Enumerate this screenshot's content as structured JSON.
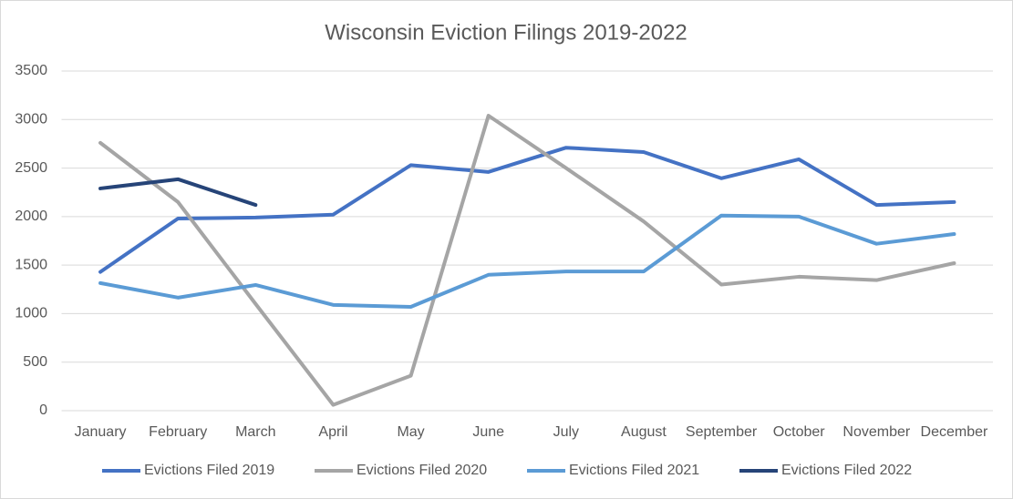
{
  "chart_data": {
    "type": "line",
    "title": "Wisconsin Eviction Filings 2019-2022",
    "categories": [
      "January",
      "February",
      "March",
      "April",
      "May",
      "June",
      "July",
      "August",
      "September",
      "October",
      "November",
      "December"
    ],
    "series": [
      {
        "name": "Evictions Filed 2019",
        "color": "#4472c4",
        "values": [
          1430,
          1980,
          1990,
          2020,
          2530,
          2460,
          2710,
          2665,
          2395,
          2590,
          2120,
          2150
        ]
      },
      {
        "name": "Evictions Filed 2020",
        "color": "#a5a5a5",
        "values": [
          2760,
          2150,
          1100,
          60,
          360,
          3040,
          2500,
          1950,
          1300,
          1380,
          1345,
          1520
        ]
      },
      {
        "name": "Evictions Filed 2021",
        "color": "#5b9bd5",
        "values": [
          1315,
          1165,
          1295,
          1090,
          1070,
          1400,
          1435,
          1435,
          2010,
          2000,
          1720,
          1820
        ]
      },
      {
        "name": "Evictions Filed 2022",
        "color": "#264478",
        "values": [
          2290,
          2385,
          2120,
          null,
          null,
          null,
          null,
          null,
          null,
          null,
          null,
          null
        ]
      }
    ],
    "ylim": [
      0,
      3500
    ],
    "yticks": [
      0,
      500,
      1000,
      1500,
      2000,
      2500,
      3000,
      3500
    ],
    "grid": true,
    "legend": "bottom"
  }
}
